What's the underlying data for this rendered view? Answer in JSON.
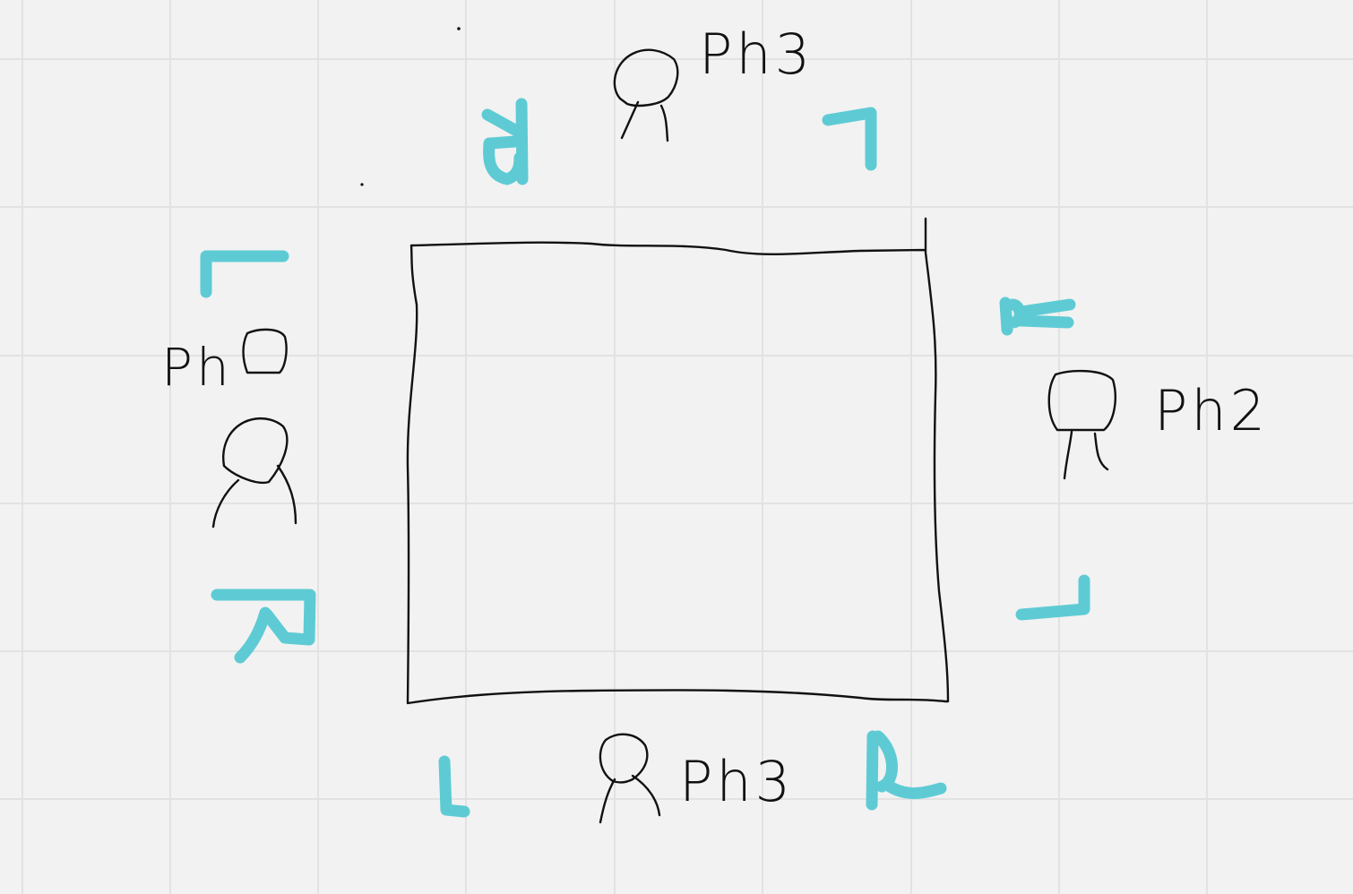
{
  "colors": {
    "background": "#f2f2f2",
    "grid": "#e2e2e2",
    "ink": "#111111",
    "marker": "#5ecbd4"
  },
  "labels": {
    "top_player": "Ph3",
    "bottom_player": "Ph3",
    "left_player": "Ph",
    "right_player": "Ph2"
  },
  "markers": {
    "top_left": "R",
    "top_right": "L",
    "right_top": "R",
    "right_bottom": "L",
    "bottom_left": "L",
    "bottom_right": "R",
    "left_top": "L",
    "left_bottom": "R"
  }
}
